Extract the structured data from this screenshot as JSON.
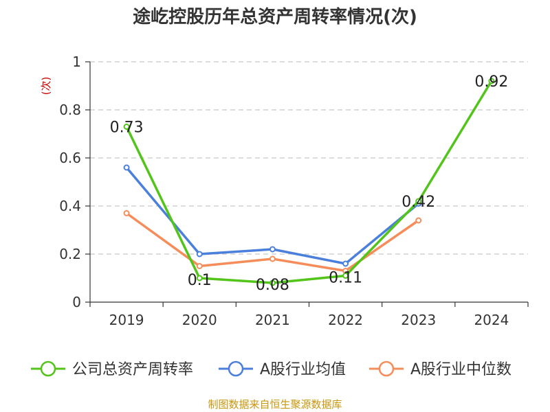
{
  "title": "途屹控股历年总资产周转率情况(次)",
  "source": "制图数据来自恒生聚源数据库",
  "chart_data": {
    "type": "line",
    "title": "途屹控股历年总资产周转率情况(次)",
    "ylabel": "(次)",
    "categories": [
      "2019",
      "2020",
      "2021",
      "2022",
      "2023",
      "2024"
    ],
    "ylim": [
      0,
      1
    ],
    "yticks": [
      "0",
      "0.2",
      "0.4",
      "0.6",
      "0.8",
      "1"
    ],
    "grid": true,
    "legend_position": "bottom",
    "series": [
      {
        "name": "公司总资产周转率",
        "color": "#52c41a",
        "values": [
          0.73,
          0.1,
          0.08,
          0.11,
          0.42,
          0.92
        ],
        "labels": [
          "0.73",
          "0.1",
          "0.08",
          "0.11",
          "0.42",
          "0.92"
        ]
      },
      {
        "name": "A股行业均值",
        "color": "#4a7fdc",
        "values": [
          0.56,
          0.2,
          0.22,
          0.16,
          0.41,
          null
        ]
      },
      {
        "name": "A股行业中位数",
        "color": "#f58d5a",
        "values": [
          0.37,
          0.15,
          0.18,
          0.13,
          0.34,
          null
        ]
      }
    ]
  }
}
